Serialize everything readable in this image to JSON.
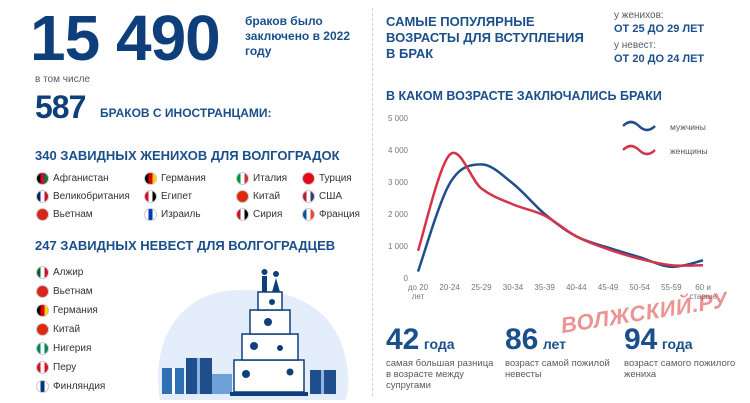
{
  "header": {
    "big_number": "15 490",
    "big_caption": "браков было заключено в 2022 году",
    "including": "в том числе",
    "foreign_number": "587",
    "foreign_caption": "БРАКОВ С ИНОСТРАНЦАМИ:"
  },
  "grooms": {
    "heading": "340 ЗАВИДНЫХ ЖЕНИХОВ ДЛЯ ВОЛГОГРАДОК",
    "countries": [
      "Афганистан",
      "Германия",
      "Италия",
      "Турция",
      "Великобритания",
      "Египет",
      "Китай",
      "США",
      "Вьетнам",
      "Израиль",
      "Сирия",
      "Франция"
    ]
  },
  "brides": {
    "heading": "247 ЗАВИДНЫХ НЕВЕСТ ДЛЯ  ВОЛГОГРАДЦЕВ",
    "countries": [
      "Алжир",
      "Вьетнам",
      "Германия",
      "Китай",
      "Нигерия",
      "Перу",
      "Финляндия"
    ]
  },
  "popular": {
    "heading": "САМЫЕ ПОПУЛЯРНЫЕ ВОЗРАСТЫ ДЛЯ ВСТУПЛЕНИЯ В БРАК",
    "grooms_label": "у женихов:",
    "grooms_value": "ОТ 25 ДО 29 ЛЕТ",
    "brides_label": "у невест:",
    "brides_value": "ОТ 20 ДО 24 ЛЕТ"
  },
  "chart_title": "В КАКОМ ВОЗРАСТЕ ЗАКЛЮЧАЛИСЬ БРАКИ",
  "chart_data": {
    "type": "line",
    "categories": [
      "до 20 лет",
      "20-24",
      "25-29",
      "30-34",
      "35-39",
      "40-44",
      "45-49",
      "50-54",
      "55-59",
      "60 и старше"
    ],
    "yticks": [
      "5 000",
      "4 000",
      "3 000",
      "2 000",
      "1 000",
      "0"
    ],
    "ylim": [
      0,
      5000
    ],
    "series": [
      {
        "name": "мужчины",
        "color": "#1f4e8c",
        "values": [
          200,
          2950,
          3550,
          2950,
          2000,
          1300,
          950,
          650,
          350,
          550
        ]
      },
      {
        "name": "женщины",
        "color": "#d6334a",
        "values": [
          850,
          3850,
          2800,
          2300,
          1950,
          1300,
          900,
          600,
          400,
          400
        ]
      }
    ],
    "legend_position": "top-right"
  },
  "stats": [
    {
      "number": "42",
      "unit": "года",
      "desc": "самая большая разница в возрасте между супругами"
    },
    {
      "number": "86",
      "unit": "лет",
      "desc": "возраст самой пожилой невесты"
    },
    {
      "number": "94",
      "unit": "года",
      "desc": "возраст самого пожилого жениха"
    }
  ],
  "watermark": "ВОЛЖСКИЙ.РУ",
  "colors": {
    "navy": "#0f3f7a",
    "blue": "#1a4f8c",
    "red": "#d6334a",
    "bubble": "#e4eefa"
  }
}
